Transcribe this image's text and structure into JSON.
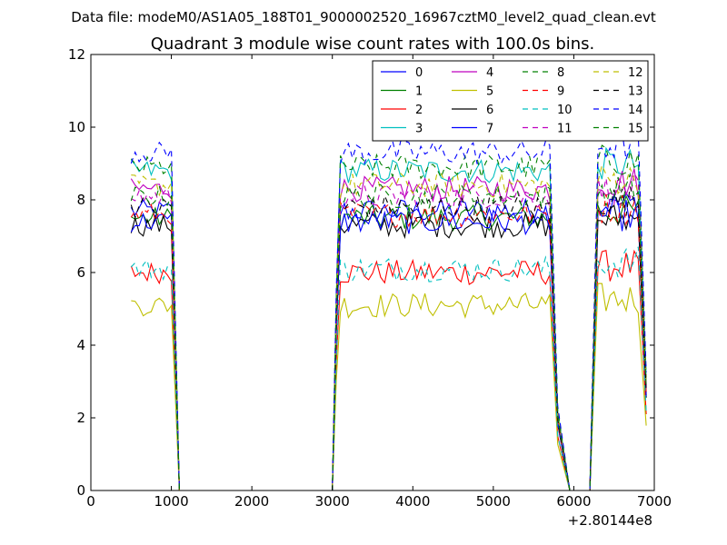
{
  "figure": {
    "suptitle": "Data file: modeM0/AS1A05_188T01_9000002520_16967cztM0_level2_quad_clean.evt"
  },
  "chart_data": {
    "type": "line",
    "title": "Quadrant 3 module wise count rates with 100.0s bins.",
    "xlabel": "",
    "ylabel": "",
    "xlim": [
      0,
      7000
    ],
    "ylim": [
      0,
      12
    ],
    "x_offset_label": "+2.80144e8",
    "x_ticks": [
      0,
      1000,
      2000,
      3000,
      4000,
      5000,
      6000,
      7000
    ],
    "y_ticks": [
      0,
      2,
      4,
      6,
      8,
      10,
      12
    ],
    "grid": false,
    "legend_position": "top-right",
    "legend_columns": 4,
    "segments": [
      {
        "start": 500,
        "end": 1000,
        "ramp_down_to": 1100
      },
      {
        "ramp_up_from": 3000,
        "start": 3100,
        "end": 5700,
        "ramp_down_to": 5950
      },
      {
        "ramp_up_from": 6200,
        "start": 6300,
        "end": 6800,
        "ramp_down_to": 6900
      }
    ],
    "series": [
      {
        "name": "0",
        "color": "#0000ff",
        "dash": "solid",
        "level": 7.7
      },
      {
        "name": "1",
        "color": "#008000",
        "dash": "solid",
        "level": 7.5
      },
      {
        "name": "2",
        "color": "#ff0000",
        "dash": "solid",
        "level": 6.0
      },
      {
        "name": "3",
        "color": "#00bfbf",
        "dash": "solid",
        "level": 8.8
      },
      {
        "name": "4",
        "color": "#bf00bf",
        "dash": "solid",
        "level": 8.3
      },
      {
        "name": "5",
        "color": "#bfbf00",
        "dash": "solid",
        "level": 5.1
      },
      {
        "name": "6",
        "color": "#000000",
        "dash": "solid",
        "level": 7.3
      },
      {
        "name": "7",
        "color": "#0000ff",
        "dash": "solid",
        "level": 7.4
      },
      {
        "name": "8",
        "color": "#008000",
        "dash": "dashed",
        "level": 8.9
      },
      {
        "name": "9",
        "color": "#ff0000",
        "dash": "dashed",
        "level": 7.6
      },
      {
        "name": "10",
        "color": "#00bfbf",
        "dash": "dashed",
        "level": 6.1
      },
      {
        "name": "11",
        "color": "#bf00bf",
        "dash": "dashed",
        "level": 8.1
      },
      {
        "name": "12",
        "color": "#bfbf00",
        "dash": "dashed",
        "level": 8.4
      },
      {
        "name": "13",
        "color": "#000000",
        "dash": "dashed",
        "level": 7.8
      },
      {
        "name": "14",
        "color": "#0000ff",
        "dash": "dashed",
        "level": 9.3
      },
      {
        "name": "15",
        "color": "#008000",
        "dash": "dashed",
        "level": 8.1
      }
    ]
  }
}
